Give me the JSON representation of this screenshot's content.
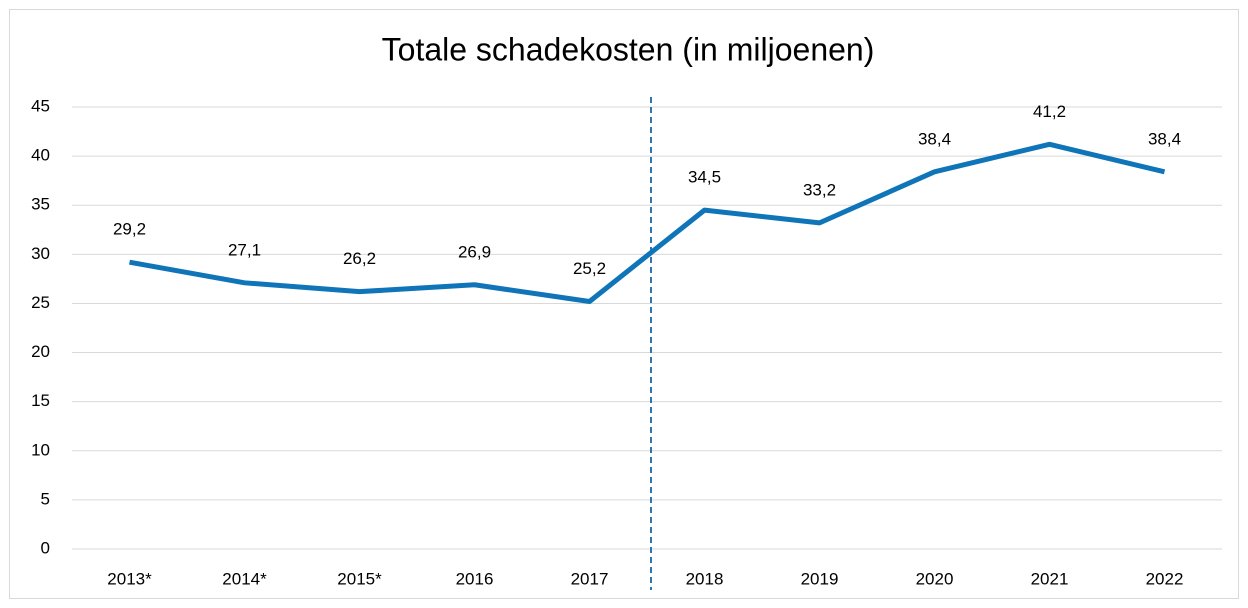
{
  "chart_data": {
    "type": "line",
    "title": "Totale schadekosten (in miljoenen)",
    "categories": [
      "2013*",
      "2014*",
      "2015*",
      "2016",
      "2017",
      "2018",
      "2019",
      "2020",
      "2021",
      "2022"
    ],
    "series": [
      {
        "name": "Totale schadekosten",
        "color": "#0f75b8",
        "values": [
          29.2,
          27.1,
          26.2,
          26.9,
          25.2,
          34.5,
          33.2,
          38.4,
          41.2,
          38.4
        ],
        "value_labels": [
          "29,2",
          "27,1",
          "26,2",
          "26,9",
          "25,2",
          "34,5",
          "33,2",
          "38,4",
          "41,2",
          "38,4"
        ]
      }
    ],
    "ylim": [
      0,
      45
    ],
    "yticks": [
      0,
      5,
      10,
      15,
      20,
      25,
      30,
      35,
      40,
      45
    ],
    "grid": true
  }
}
